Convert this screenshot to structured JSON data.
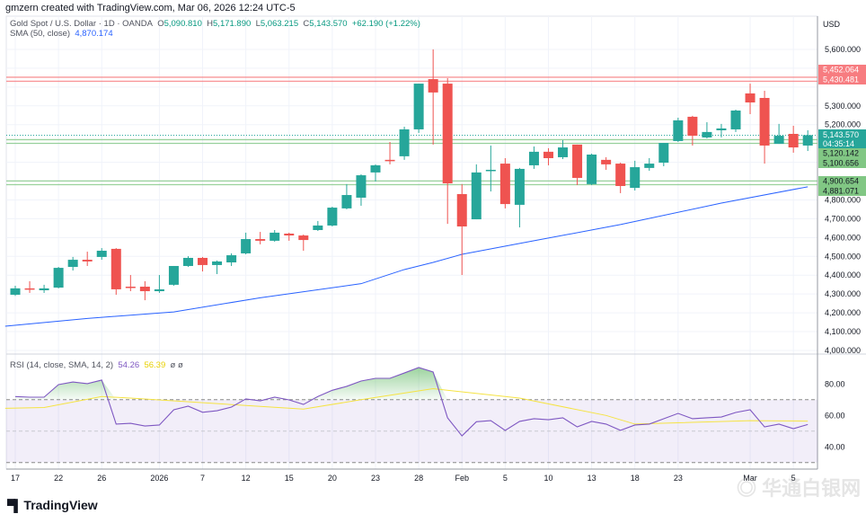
{
  "header": {
    "attribution": "gmzern created with TradingView.com, Mar 06, 2026 12:24 UTC-5"
  },
  "legend": {
    "symbol": "Gold Spot / U.S. Dollar · 1D · OANDA",
    "open_label": "O",
    "open": "5,090.810",
    "high_label": "H",
    "high": "5,171.890",
    "low_label": "L",
    "low": "5,063.215",
    "close_label": "C",
    "close": "5,143.570",
    "change": "+62.190 (+1.22%)"
  },
  "sma_legend": {
    "label": "SMA (50, close)",
    "value": "4,870.174"
  },
  "rsi_legend": {
    "label": "RSI (14, close, SMA, 14, 2)",
    "rsi": "54.26",
    "sma": "56.39",
    "extra": "ø ø"
  },
  "currency": "USD",
  "colors": {
    "up": "#26a69a",
    "down": "#ef5350",
    "sma": "#2962ff",
    "rsi": "#7e57c2",
    "rsi_sma": "#f5e342",
    "red_level": "#f77c80",
    "green_level": "#81c784"
  },
  "price_axis": {
    "ticks": [
      {
        "value": 5600,
        "label": "5,600.000"
      },
      {
        "value": 5300,
        "label": "5,300.000"
      },
      {
        "value": 5200,
        "label": "5,200.000"
      },
      {
        "value": 4800,
        "label": "4,800.000"
      },
      {
        "value": 4700,
        "label": "4,700.000"
      },
      {
        "value": 4600,
        "label": "4,600.000"
      },
      {
        "value": 4500,
        "label": "4,500.000"
      },
      {
        "value": 4400,
        "label": "4,400.000"
      },
      {
        "value": 4300,
        "label": "4,300.000"
      },
      {
        "value": 4200,
        "label": "4,200.000"
      },
      {
        "value": 4100,
        "label": "4,100.000"
      },
      {
        "value": 4000,
        "label": "4,000.000"
      }
    ]
  },
  "levels": [
    {
      "value": 5452.064,
      "label": "5,452.064",
      "kind": "red"
    },
    {
      "value": 5430.481,
      "label": "5,430.481",
      "kind": "red"
    },
    {
      "value": 5120.142,
      "label": "5,120.142",
      "kind": "green"
    },
    {
      "value": 5100.656,
      "label": "5,100.656",
      "kind": "green"
    },
    {
      "value": 4900.654,
      "label": "4,900.654",
      "kind": "green"
    },
    {
      "value": 4881.071,
      "label": "4,881.071",
      "kind": "green"
    }
  ],
  "last_price": {
    "value": 5143.57,
    "label": "5,143.570",
    "countdown": "04:35:14"
  },
  "rsi_axis": {
    "ticks": [
      {
        "value": 80,
        "label": "80.00"
      },
      {
        "value": 60,
        "label": "60.00"
      },
      {
        "value": 40,
        "label": "40.00"
      }
    ],
    "bands": [
      70,
      50,
      30
    ]
  },
  "time_axis": [
    {
      "i": 0,
      "label": "17"
    },
    {
      "i": 3,
      "label": "22"
    },
    {
      "i": 6,
      "label": "26"
    },
    {
      "i": 10,
      "label": "2026"
    },
    {
      "i": 13,
      "label": "7"
    },
    {
      "i": 16,
      "label": "12"
    },
    {
      "i": 19,
      "label": "15"
    },
    {
      "i": 22,
      "label": "20"
    },
    {
      "i": 25,
      "label": "23"
    },
    {
      "i": 28,
      "label": "28"
    },
    {
      "i": 31,
      "label": "Feb"
    },
    {
      "i": 34,
      "label": "5"
    },
    {
      "i": 37,
      "label": "10"
    },
    {
      "i": 40,
      "label": "13"
    },
    {
      "i": 43,
      "label": "18"
    },
    {
      "i": 46,
      "label": "23"
    },
    {
      "i": 51,
      "label": "Mar"
    },
    {
      "i": 54,
      "label": "5"
    }
  ],
  "chart_data": {
    "type": "candlestick",
    "ohlc": [
      [
        4296,
        4344,
        4290,
        4330
      ],
      [
        4330,
        4368,
        4306,
        4325
      ],
      [
        4320,
        4349,
        4306,
        4330
      ],
      [
        4334,
        4444,
        4330,
        4439
      ],
      [
        4444,
        4497,
        4425,
        4482
      ],
      [
        4482,
        4525,
        4449,
        4473
      ],
      [
        4497,
        4544,
        4482,
        4530
      ],
      [
        4540,
        4544,
        4296,
        4325
      ],
      [
        4339,
        4401,
        4315,
        4334
      ],
      [
        4339,
        4368,
        4267,
        4315
      ],
      [
        4315,
        4401,
        4306,
        4325
      ],
      [
        4349,
        4449,
        4344,
        4449
      ],
      [
        4449,
        4501,
        4444,
        4492
      ],
      [
        4492,
        4497,
        4420,
        4454
      ],
      [
        4454,
        4478,
        4406,
        4473
      ],
      [
        4468,
        4516,
        4449,
        4506
      ],
      [
        4516,
        4626,
        4511,
        4592
      ],
      [
        4592,
        4630,
        4564,
        4583
      ],
      [
        4583,
        4640,
        4578,
        4626
      ],
      [
        4621,
        4626,
        4583,
        4611
      ],
      [
        4611,
        4616,
        4530,
        4587
      ],
      [
        4640,
        4688,
        4635,
        4664
      ],
      [
        4664,
        4764,
        4659,
        4759
      ],
      [
        4755,
        4884,
        4750,
        4826
      ],
      [
        4812,
        4936,
        4769,
        4931
      ],
      [
        4946,
        4989,
        4898,
        4984
      ],
      [
        5013,
        5108,
        4989,
        5008
      ],
      [
        5032,
        5189,
        5013,
        5175
      ],
      [
        5175,
        5418,
        5156,
        5418
      ],
      [
        5442,
        5600,
        5094,
        5371
      ],
      [
        5418,
        5447,
        4673,
        4888
      ],
      [
        4831,
        4884,
        4401,
        4659
      ],
      [
        4697,
        4989,
        4697,
        4946
      ],
      [
        4955,
        5089,
        4845,
        4960
      ],
      [
        4993,
        5022,
        4755,
        4778
      ],
      [
        4774,
        4970,
        4654,
        4965
      ],
      [
        4984,
        5084,
        4965,
        5056
      ],
      [
        5056,
        5075,
        4984,
        5022
      ],
      [
        5027,
        5118,
        5017,
        5079
      ],
      [
        5094,
        5094,
        4879,
        4917
      ],
      [
        4884,
        5046,
        4879,
        5041
      ],
      [
        5013,
        5027,
        4960,
        4989
      ],
      [
        4993,
        4998,
        4836,
        4874
      ],
      [
        4864,
        5008,
        4850,
        4974
      ],
      [
        4970,
        5022,
        4955,
        4993
      ],
      [
        4998,
        5103,
        4979,
        5103
      ],
      [
        5113,
        5237,
        5108,
        5223
      ],
      [
        5242,
        5247,
        5089,
        5141
      ],
      [
        5132,
        5213,
        5127,
        5161
      ],
      [
        5170,
        5204,
        5132,
        5180
      ],
      [
        5175,
        5280,
        5161,
        5275
      ],
      [
        5366,
        5418,
        5256,
        5318
      ],
      [
        5342,
        5380,
        4993,
        5089
      ],
      [
        5098,
        5204,
        5098,
        5141
      ],
      [
        5151,
        5194,
        5051,
        5079
      ],
      [
        5089,
        5170,
        5060,
        5144
      ]
    ],
    "sma50": [
      [
        -0.7,
        4129
      ],
      [
        5,
        4170
      ],
      [
        11,
        4205
      ],
      [
        17,
        4280
      ],
      [
        24,
        4355
      ],
      [
        27,
        4430
      ],
      [
        29,
        4468
      ],
      [
        31,
        4511
      ],
      [
        36,
        4583
      ],
      [
        42,
        4669
      ],
      [
        49,
        4783
      ],
      [
        55,
        4870
      ]
    ],
    "rsi": [
      72,
      71.6,
      71.6,
      79.6,
      81.3,
      80.2,
      82.5,
      54.5,
      55,
      53.3,
      53.9,
      63.6,
      65.9,
      62,
      63,
      65.3,
      70.5,
      69.3,
      71.6,
      69.9,
      67,
      72,
      76,
      78.5,
      81.9,
      83.6,
      83.6,
      87,
      90.5,
      87.6,
      58.5,
      47,
      56,
      56.7,
      50.5,
      56.2,
      57.9,
      57.3,
      58.5,
      52.7,
      56.2,
      54.5,
      50.5,
      53.9,
      54.5,
      57.9,
      61.3,
      57.9,
      58.5,
      59,
      61.9,
      63.6,
      52.7,
      54.5,
      51.6,
      54.26
    ],
    "rsi_sma": [
      [
        -0.7,
        64.5
      ],
      [
        2,
        65
      ],
      [
        6,
        72
      ],
      [
        8,
        71
      ],
      [
        14,
        67.5
      ],
      [
        20,
        64
      ],
      [
        24,
        70
      ],
      [
        29,
        77
      ],
      [
        35,
        71
      ],
      [
        41,
        60
      ],
      [
        43,
        54.5
      ],
      [
        51,
        56.7
      ],
      [
        55,
        56.39
      ]
    ],
    "ylim": [
      4000,
      5650
    ],
    "rsi_ylim": [
      25,
      95
    ]
  },
  "footer": {
    "brand": "TradingView",
    "brand_mark": "TV"
  },
  "watermark": "华通白银网"
}
